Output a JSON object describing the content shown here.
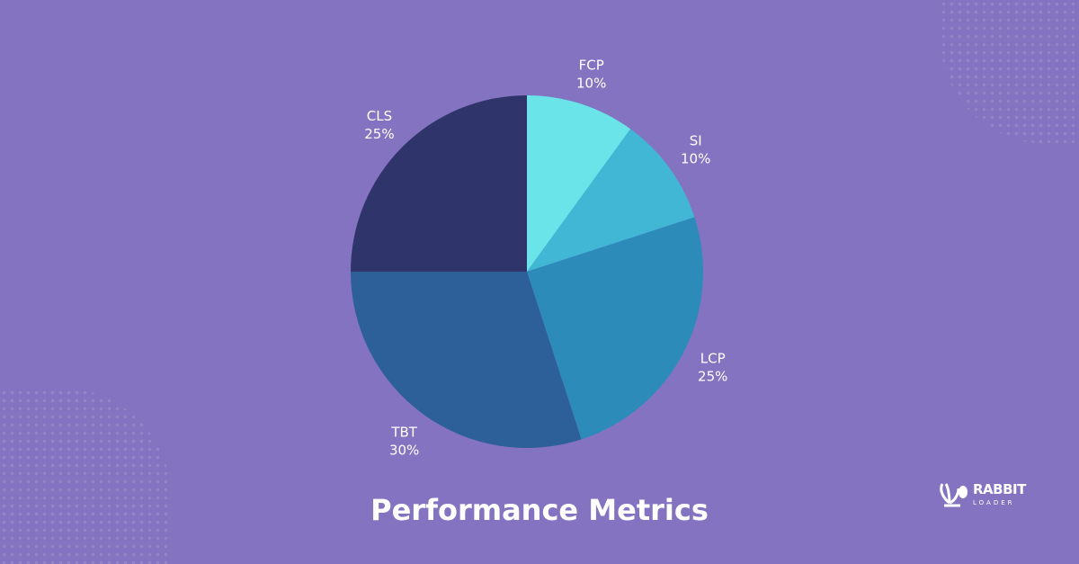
{
  "chart_data": {
    "type": "pie",
    "title": "Performance Metrics",
    "start": "top",
    "direction": "clockwise",
    "slices": [
      {
        "label": "FCP",
        "value": 10,
        "display": "10%",
        "color": "#6ae4e8"
      },
      {
        "label": "SI",
        "value": 10,
        "display": "10%",
        "color": "#42b6d5"
      },
      {
        "label": "LCP",
        "value": 25,
        "display": "25%",
        "color": "#2d8bba"
      },
      {
        "label": "TBT",
        "value": 30,
        "display": "30%",
        "color": "#2d5f98"
      },
      {
        "label": "CLS",
        "value": 25,
        "display": "25%",
        "color": "#2f356b"
      }
    ]
  },
  "background_color": "#8473c0",
  "logo": {
    "line1": "RABBIT",
    "line2": "LOADER",
    "icon": "rabbit-ears-icon"
  }
}
